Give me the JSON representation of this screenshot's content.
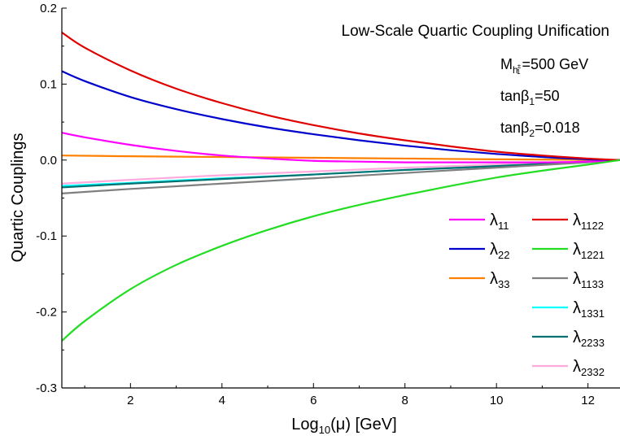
{
  "chart_data": {
    "type": "line",
    "xlim": [
      0.5,
      12.7
    ],
    "ylim": [
      -0.3,
      0.2
    ],
    "xticks": [
      "2",
      "4",
      "6",
      "8",
      "10",
      "12"
    ],
    "xtick_values": [
      2,
      4,
      6,
      8,
      10,
      12
    ],
    "yticks": [
      "0.2",
      "0.1",
      "0.0",
      "-0.1",
      "-0.2",
      "-0.3"
    ],
    "ytick_values": [
      0.2,
      0.1,
      0.0,
      -0.1,
      -0.2,
      -0.3
    ],
    "grid": false,
    "legend_position": "right",
    "xlabel": {
      "pre": "Log",
      "sub": "10",
      "post": "(μ) [GeV]"
    },
    "ylabel": "Quartic Couplings",
    "annotations": {
      "title": "Low-Scale Quartic Coupling Unification",
      "mass": {
        "pre": "M",
        "sub": "h",
        "subsup": "±",
        "subsub": "1",
        "post": "=500 GeV"
      },
      "tanb1": {
        "pre": "tanβ",
        "sub": "1",
        "post": "=50"
      },
      "tanb2": {
        "pre": "tanβ",
        "sub": "2",
        "post": "=0.018"
      }
    },
    "unification_point": {
      "x": 12.7,
      "y": 0.0
    },
    "series": [
      {
        "name": "λ",
        "sub": "11",
        "color": "#ff00ff",
        "x": [
          0.5,
          1,
          2,
          3,
          4,
          5,
          6,
          7,
          8,
          9,
          10,
          11,
          12,
          12.7
        ],
        "y": [
          0.036,
          0.03,
          0.02,
          0.012,
          0.006,
          0.002,
          -0.001,
          -0.002,
          -0.003,
          -0.003,
          -0.003,
          -0.003,
          -0.002,
          0.0
        ]
      },
      {
        "name": "λ",
        "sub": "22",
        "color": "#0000cd",
        "x": [
          0.5,
          1,
          2,
          3,
          4,
          5,
          6,
          7,
          8,
          9,
          10,
          11,
          12,
          12.7
        ],
        "y": [
          0.117,
          0.104,
          0.083,
          0.067,
          0.054,
          0.043,
          0.034,
          0.026,
          0.019,
          0.013,
          0.008,
          0.004,
          0.001,
          0.0
        ]
      },
      {
        "name": "λ",
        "sub": "33",
        "color": "#ff8000",
        "x": [
          0.5,
          2,
          4,
          6,
          8,
          10,
          12,
          12.7
        ],
        "y": [
          0.006,
          0.005,
          0.004,
          0.003,
          0.002,
          0.001,
          0.0003,
          0.0
        ]
      },
      {
        "name": "λ",
        "sub": "1122",
        "color": "#e00000",
        "x": [
          0.5,
          1,
          2,
          3,
          4,
          5,
          6,
          7,
          8,
          9,
          10,
          11,
          12,
          12.7
        ],
        "y": [
          0.168,
          0.148,
          0.118,
          0.094,
          0.075,
          0.059,
          0.046,
          0.035,
          0.026,
          0.018,
          0.011,
          0.006,
          0.002,
          0.0
        ]
      },
      {
        "name": "λ",
        "sub": "1221",
        "color": "#22dd22",
        "x": [
          0.5,
          1,
          2,
          3,
          4,
          5,
          6,
          7,
          8,
          9,
          10,
          11,
          12,
          12.7
        ],
        "y": [
          -0.238,
          -0.212,
          -0.17,
          -0.138,
          -0.113,
          -0.092,
          -0.074,
          -0.059,
          -0.046,
          -0.034,
          -0.023,
          -0.014,
          -0.006,
          0.0
        ]
      },
      {
        "name": "λ",
        "sub": "1133",
        "color": "#808080",
        "x": [
          0.5,
          2,
          4,
          6,
          8,
          10,
          12,
          12.7
        ],
        "y": [
          -0.044,
          -0.038,
          -0.031,
          -0.024,
          -0.017,
          -0.01,
          -0.003,
          0.0
        ]
      },
      {
        "name": "λ",
        "sub": "1331",
        "color": "#00ffff",
        "x": [
          0.5,
          2,
          4,
          6,
          8,
          10,
          12,
          12.7
        ],
        "y": [
          -0.034,
          -0.03,
          -0.024,
          -0.019,
          -0.013,
          -0.008,
          -0.002,
          0.0
        ]
      },
      {
        "name": "λ",
        "sub": "2233",
        "color": "#007070",
        "x": [
          0.5,
          2,
          4,
          6,
          8,
          10,
          12,
          12.7
        ],
        "y": [
          -0.036,
          -0.031,
          -0.025,
          -0.019,
          -0.013,
          -0.008,
          -0.002,
          0.0
        ]
      },
      {
        "name": "λ",
        "sub": "2332",
        "color": "#ffaadd",
        "x": [
          0.5,
          2,
          4,
          6,
          8,
          10,
          12,
          12.7
        ],
        "y": [
          -0.031,
          -0.026,
          -0.02,
          -0.015,
          -0.01,
          -0.006,
          -0.0015,
          0.0
        ]
      }
    ]
  }
}
